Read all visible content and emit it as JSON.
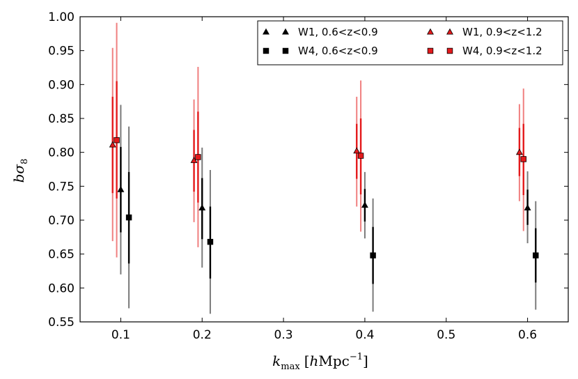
{
  "chart_data": {
    "type": "scatter",
    "xlabel_main": "k",
    "xlabel_sub": "max",
    "xlabel_unit_pre": "[",
    "xlabel_unit_h": "h",
    "xlabel_unit_text": "Mpc",
    "xlabel_unit_exp": "−1",
    "xlabel_unit_post": "]",
    "ylabel_main": "bσ",
    "ylabel_sub": "8",
    "xlim": [
      0.05,
      0.65
    ],
    "ylim": [
      0.55,
      1.0
    ],
    "xticks": [
      0.1,
      0.2,
      0.3,
      0.4,
      0.5,
      0.6
    ],
    "xtick_labels": [
      "0.1",
      "0.2",
      "0.3",
      "0.4",
      "0.5",
      "0.6"
    ],
    "yticks": [
      0.55,
      0.6,
      0.65,
      0.7,
      0.75,
      0.8,
      0.85,
      0.9,
      0.95,
      1.0
    ],
    "ytick_labels": [
      "0.55",
      "0.60",
      "0.65",
      "0.70",
      "0.75",
      "0.80",
      "0.85",
      "0.90",
      "0.95",
      "1.00"
    ],
    "legend_position": "top-right",
    "series": [
      {
        "name": "W1, 0.6<z<0.9",
        "marker": "triangle",
        "color": "#000000",
        "err_color": "#000000",
        "err_color_outer": "#7a7a7a",
        "x": [
          0.1,
          0.2,
          0.4,
          0.6
        ],
        "y": [
          0.745,
          0.718,
          0.722,
          0.718
        ],
        "err_inner": [
          [
            0.682,
            0.808
          ],
          [
            0.672,
            0.762
          ],
          [
            0.698,
            0.746
          ],
          [
            0.693,
            0.745
          ]
        ],
        "err_outer": [
          [
            0.62,
            0.87
          ],
          [
            0.63,
            0.807
          ],
          [
            0.673,
            0.771
          ],
          [
            0.666,
            0.772
          ]
        ]
      },
      {
        "name": "W4, 0.6<z<0.9",
        "marker": "square",
        "color": "#000000",
        "err_color": "#000000",
        "err_color_outer": "#7a7a7a",
        "x": [
          0.11,
          0.21,
          0.41,
          0.61
        ],
        "y": [
          0.704,
          0.668,
          0.648,
          0.648
        ],
        "err_inner": [
          [
            0.636,
            0.771
          ],
          [
            0.614,
            0.72
          ],
          [
            0.606,
            0.69
          ],
          [
            0.608,
            0.688
          ]
        ],
        "err_outer": [
          [
            0.57,
            0.838
          ],
          [
            0.562,
            0.774
          ],
          [
            0.565,
            0.732
          ],
          [
            0.568,
            0.728
          ]
        ]
      },
      {
        "name": "W1, 0.9<z<1.2",
        "marker": "triangle",
        "color": "#e41a1c",
        "err_color": "#e41a1c",
        "err_color_outer": "#f07f7f",
        "x": [
          0.09,
          0.19,
          0.39,
          0.59
        ],
        "y": [
          0.811,
          0.788,
          0.802,
          0.8
        ],
        "err_inner": [
          [
            0.74,
            0.882
          ],
          [
            0.742,
            0.833
          ],
          [
            0.761,
            0.842
          ],
          [
            0.765,
            0.836
          ]
        ],
        "err_outer": [
          [
            0.669,
            0.954
          ],
          [
            0.697,
            0.878
          ],
          [
            0.72,
            0.882
          ],
          [
            0.728,
            0.871
          ]
        ]
      },
      {
        "name": "W4, 0.9<z<1.2",
        "marker": "square",
        "color": "#e41a1c",
        "err_color": "#e41a1c",
        "err_color_outer": "#f07f7f",
        "x": [
          0.095,
          0.195,
          0.395,
          0.595
        ],
        "y": [
          0.818,
          0.793,
          0.795,
          0.79
        ],
        "err_inner": [
          [
            0.732,
            0.905
          ],
          [
            0.726,
            0.86
          ],
          [
            0.738,
            0.85
          ],
          [
            0.737,
            0.842
          ]
        ],
        "err_outer": [
          [
            0.645,
            0.991
          ],
          [
            0.66,
            0.926
          ],
          [
            0.683,
            0.906
          ],
          [
            0.684,
            0.894
          ]
        ]
      }
    ]
  }
}
